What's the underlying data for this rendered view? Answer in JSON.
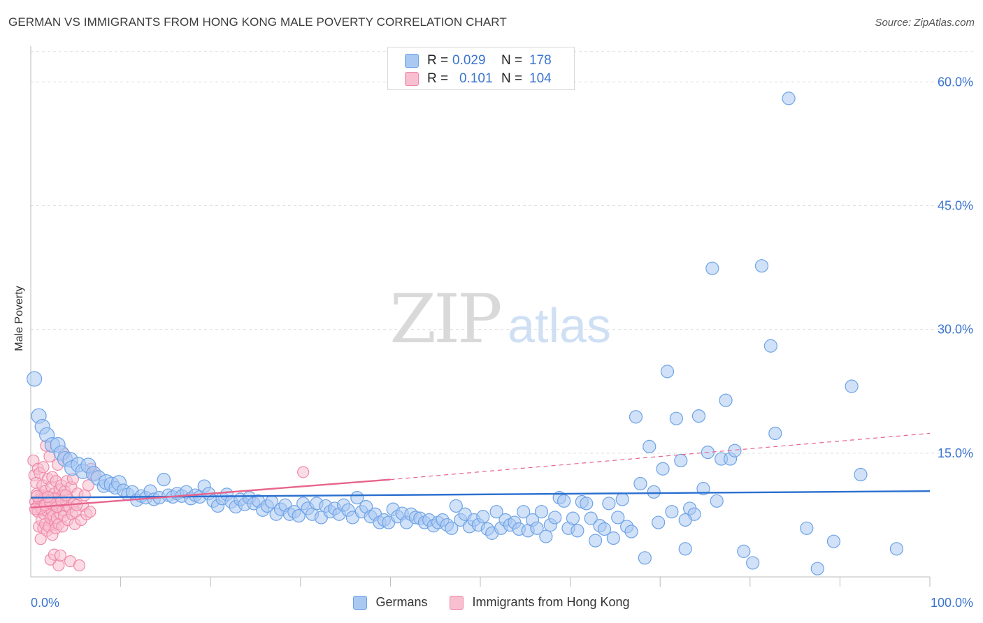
{
  "title": "GERMAN VS IMMIGRANTS FROM HONG KONG MALE POVERTY CORRELATION CHART",
  "source": "Source: ZipAtlas.com",
  "watermark": {
    "zip": "ZIP",
    "atlas": "atlas"
  },
  "colors": {
    "germans": "#6ea3e6",
    "germans_fill": "#a9c8f2",
    "germans_line": "#2a6fcf",
    "hongkong": "#f08aaa",
    "hongkong_fill": "#f7bfd0",
    "hongkong_line": "#e8648c",
    "axis_label": "#3a74d0",
    "grid": "#dddddd"
  },
  "legend_top": {
    "rows": [
      {
        "r_label": "R =",
        "r_value": "0.029",
        "n_label": "N =",
        "n_value": "178"
      },
      {
        "r_label": "R =",
        "r_value": "0.101",
        "n_label": "N =",
        "n_value": "104"
      }
    ]
  },
  "legend_bottom": {
    "germans": "Germans",
    "hongkong": "Immigrants from Hong Kong"
  },
  "chart_data": {
    "type": "scatter",
    "title": "GERMAN VS IMMIGRANTS FROM HONG KONG MALE POVERTY CORRELATION CHART",
    "xlabel": "",
    "ylabel": "Male Poverty",
    "xlim": [
      0,
      100
    ],
    "ylim": [
      0,
      64
    ],
    "x_tick_labels": [
      "0.0%",
      "100.0%"
    ],
    "y_ticks": [
      15,
      30,
      45,
      60
    ],
    "y_tick_labels": [
      "15.0%",
      "30.0%",
      "45.0%",
      "60.0%"
    ],
    "grid": true,
    "legend_placement": "bottom",
    "series": [
      {
        "name": "Germans",
        "r": 0.029,
        "n": 178,
        "trend": {
          "x": [
            0,
            100
          ],
          "y": [
            9.6,
            10.4
          ],
          "dashed_to": null
        },
        "points": [
          [
            0.4,
            24
          ],
          [
            0.9,
            19.5
          ],
          [
            1.3,
            18.2
          ],
          [
            1.8,
            17.2
          ],
          [
            2.4,
            16
          ],
          [
            3,
            16
          ],
          [
            3.4,
            15
          ],
          [
            3.8,
            14.3
          ],
          [
            4.4,
            14.2
          ],
          [
            4.6,
            13.2
          ],
          [
            5.3,
            13.6
          ],
          [
            5.8,
            12.8
          ],
          [
            6.4,
            13.5
          ],
          [
            7,
            12.5
          ],
          [
            7.5,
            12
          ],
          [
            8.1,
            11
          ],
          [
            8.4,
            11.5
          ],
          [
            9,
            11.2
          ],
          [
            9.4,
            10.8
          ],
          [
            9.8,
            11.4
          ],
          [
            10.3,
            10.5
          ],
          [
            10.8,
            10
          ],
          [
            11.3,
            10.3
          ],
          [
            11.8,
            9.3
          ],
          [
            12.3,
            9.8
          ],
          [
            12.8,
            9.6
          ],
          [
            13.3,
            10.4
          ],
          [
            13.7,
            9.4
          ],
          [
            14.3,
            9.6
          ],
          [
            14.8,
            11.8
          ],
          [
            15.3,
            9.9
          ],
          [
            15.8,
            9.7
          ],
          [
            16.3,
            10.1
          ],
          [
            16.8,
            9.8
          ],
          [
            17.3,
            10.3
          ],
          [
            17.8,
            9.5
          ],
          [
            18.3,
            9.9
          ],
          [
            18.8,
            9.7
          ],
          [
            19.3,
            11
          ],
          [
            19.8,
            10.1
          ],
          [
            20.3,
            9.2
          ],
          [
            20.8,
            8.6
          ],
          [
            21.3,
            9.5
          ],
          [
            21.8,
            10
          ],
          [
            22.3,
            9.1
          ],
          [
            22.8,
            8.5
          ],
          [
            23.3,
            9.4
          ],
          [
            23.8,
            8.8
          ],
          [
            24.3,
            9.6
          ],
          [
            24.8,
            8.9
          ],
          [
            25.3,
            9.2
          ],
          [
            25.8,
            8.1
          ],
          [
            26.3,
            8.6
          ],
          [
            26.8,
            9.1
          ],
          [
            27.3,
            7.6
          ],
          [
            27.8,
            8.2
          ],
          [
            28.3,
            8.7
          ],
          [
            28.8,
            7.6
          ],
          [
            29.3,
            7.9
          ],
          [
            29.8,
            7.4
          ],
          [
            30.3,
            8.9
          ],
          [
            30.8,
            8.3
          ],
          [
            31.3,
            7.6
          ],
          [
            31.8,
            8.9
          ],
          [
            32.3,
            7.2
          ],
          [
            32.8,
            8.6
          ],
          [
            33.3,
            7.9
          ],
          [
            33.8,
            8.3
          ],
          [
            34.3,
            7.6
          ],
          [
            34.8,
            8.7
          ],
          [
            35.3,
            8.1
          ],
          [
            35.8,
            7.2
          ],
          [
            36.3,
            9.6
          ],
          [
            36.8,
            7.9
          ],
          [
            37.3,
            8.5
          ],
          [
            37.8,
            7.3
          ],
          [
            38.3,
            7.6
          ],
          [
            38.8,
            6.6
          ],
          [
            39.3,
            6.9
          ],
          [
            39.8,
            6.6
          ],
          [
            40.3,
            8.2
          ],
          [
            40.8,
            7.3
          ],
          [
            41.3,
            7.7
          ],
          [
            41.8,
            6.6
          ],
          [
            42.3,
            7.6
          ],
          [
            42.8,
            7.2
          ],
          [
            43.3,
            7.1
          ],
          [
            43.8,
            6.6
          ],
          [
            44.3,
            6.9
          ],
          [
            44.8,
            6.2
          ],
          [
            45.3,
            6.6
          ],
          [
            45.8,
            6.9
          ],
          [
            46.3,
            6.3
          ],
          [
            46.8,
            5.9
          ],
          [
            47.3,
            8.6
          ],
          [
            47.8,
            6.9
          ],
          [
            48.3,
            7.6
          ],
          [
            48.8,
            6.1
          ],
          [
            49.3,
            6.9
          ],
          [
            49.8,
            6.3
          ],
          [
            50.3,
            7.3
          ],
          [
            50.8,
            5.8
          ],
          [
            51.3,
            5.3
          ],
          [
            51.8,
            7.9
          ],
          [
            52.3,
            5.9
          ],
          [
            52.8,
            6.9
          ],
          [
            53.3,
            6.3
          ],
          [
            53.8,
            6.6
          ],
          [
            54.3,
            5.8
          ],
          [
            54.8,
            7.9
          ],
          [
            55.3,
            5.6
          ],
          [
            55.8,
            6.9
          ],
          [
            56.3,
            5.9
          ],
          [
            56.8,
            7.9
          ],
          [
            57.3,
            4.9
          ],
          [
            57.8,
            6.3
          ],
          [
            58.3,
            7.2
          ],
          [
            58.8,
            9.6
          ],
          [
            59.3,
            9.2
          ],
          [
            59.8,
            5.9
          ],
          [
            60.3,
            7.1
          ],
          [
            60.8,
            5.6
          ],
          [
            61.3,
            9.1
          ],
          [
            61.8,
            8.9
          ],
          [
            62.3,
            7.1
          ],
          [
            62.8,
            4.4
          ],
          [
            63.3,
            6.2
          ],
          [
            63.8,
            5.8
          ],
          [
            64.3,
            8.9
          ],
          [
            64.8,
            4.7
          ],
          [
            65.3,
            7.2
          ],
          [
            65.8,
            9.4
          ],
          [
            66.3,
            6.1
          ],
          [
            66.8,
            5.5
          ],
          [
            67.3,
            19.4
          ],
          [
            67.8,
            11.3
          ],
          [
            68.3,
            2.3
          ],
          [
            68.8,
            15.8
          ],
          [
            69.3,
            10.3
          ],
          [
            69.8,
            6.6
          ],
          [
            70.3,
            13.1
          ],
          [
            70.8,
            24.9
          ],
          [
            71.3,
            7.9
          ],
          [
            71.8,
            19.2
          ],
          [
            72.3,
            14.1
          ],
          [
            72.8,
            3.4
          ],
          [
            73.3,
            8.3
          ],
          [
            73.8,
            7.6
          ],
          [
            74.3,
            19.5
          ],
          [
            74.8,
            10.7
          ],
          [
            75.3,
            15.1
          ],
          [
            75.8,
            37.4
          ],
          [
            76.3,
            9.2
          ],
          [
            76.8,
            14.3
          ],
          [
            77.3,
            21.4
          ],
          [
            77.8,
            14.3
          ],
          [
            78.3,
            15.3
          ],
          [
            79.3,
            3.1
          ],
          [
            80.3,
            1.7
          ],
          [
            81.3,
            37.7
          ],
          [
            82.3,
            28
          ],
          [
            82.8,
            17.4
          ],
          [
            84.3,
            58
          ],
          [
            86.3,
            5.9
          ],
          [
            87.5,
            1
          ],
          [
            89.3,
            4.3
          ],
          [
            91.3,
            23.1
          ],
          [
            92.3,
            12.4
          ],
          [
            96.3,
            3.4
          ],
          [
            72.8,
            6.9
          ]
        ]
      },
      {
        "name": "Immigrants from Hong Kong",
        "r": 0.101,
        "n": 104,
        "trend": {
          "x": [
            0,
            40
          ],
          "y": [
            8.4,
            11.8
          ],
          "dashed_to": [
            100,
            17.4
          ]
        },
        "points": [
          [
            0.3,
            14.1
          ],
          [
            0.4,
            12.3
          ],
          [
            0.5,
            9.1
          ],
          [
            0.6,
            8.4
          ],
          [
            0.6,
            11.4
          ],
          [
            0.7,
            10.1
          ],
          [
            0.8,
            7.9
          ],
          [
            0.8,
            13.1
          ],
          [
            0.9,
            6.1
          ],
          [
            1,
            9.4
          ],
          [
            1,
            12.6
          ],
          [
            1.1,
            8.7
          ],
          [
            1.1,
            4.6
          ],
          [
            1.2,
            9.9
          ],
          [
            1.2,
            6.9
          ],
          [
            1.3,
            11.1
          ],
          [
            1.3,
            8.1
          ],
          [
            1.4,
            13.3
          ],
          [
            1.4,
            5.9
          ],
          [
            1.5,
            9.6
          ],
          [
            1.5,
            7.6
          ],
          [
            1.6,
            10.4
          ],
          [
            1.6,
            6.4
          ],
          [
            1.7,
            8.4
          ],
          [
            1.7,
            15.9
          ],
          [
            1.8,
            9.1
          ],
          [
            1.8,
            5.6
          ],
          [
            1.9,
            7.9
          ],
          [
            1.9,
            11.9
          ],
          [
            2,
            8.9
          ],
          [
            2,
            6.1
          ],
          [
            2.1,
            14.6
          ],
          [
            2.1,
            9.6
          ],
          [
            2.2,
            7.1
          ],
          [
            2.2,
            2.1
          ],
          [
            2.3,
            10.9
          ],
          [
            2.3,
            8.1
          ],
          [
            2.4,
            5.1
          ],
          [
            2.4,
            12.1
          ],
          [
            2.5,
            9.4
          ],
          [
            2.5,
            7.4
          ],
          [
            2.6,
            2.7
          ],
          [
            2.6,
            10.1
          ],
          [
            2.7,
            6.6
          ],
          [
            2.7,
            8.6
          ],
          [
            2.8,
            11.6
          ],
          [
            2.8,
            5.9
          ],
          [
            2.9,
            9.1
          ],
          [
            2.9,
            7.1
          ],
          [
            3,
            13.6
          ],
          [
            3,
            8.4
          ],
          [
            3.1,
            6.4
          ],
          [
            3.1,
            1.4
          ],
          [
            3.2,
            10.6
          ],
          [
            3.2,
            8.9
          ],
          [
            3.3,
            7.6
          ],
          [
            3.3,
            2.6
          ],
          [
            3.4,
            11.1
          ],
          [
            3.5,
            9.9
          ],
          [
            3.5,
            6.1
          ],
          [
            3.6,
            8.1
          ],
          [
            3.7,
            14.9
          ],
          [
            3.7,
            7.4
          ],
          [
            3.8,
            10.4
          ],
          [
            3.9,
            8.6
          ],
          [
            4,
            11.6
          ],
          [
            4.1,
            6.9
          ],
          [
            4.2,
            9.4
          ],
          [
            4.3,
            8.4
          ],
          [
            4.4,
            1.9
          ],
          [
            4.5,
            10.9
          ],
          [
            4.6,
            7.6
          ],
          [
            4.7,
            11.9
          ],
          [
            4.8,
            8.9
          ],
          [
            4.9,
            6.4
          ],
          [
            5,
            7.9
          ],
          [
            5.2,
            10.1
          ],
          [
            5.4,
            1.4
          ],
          [
            5.6,
            6.9
          ],
          [
            5.8,
            8.6
          ],
          [
            6,
            9.9
          ],
          [
            6.2,
            7.6
          ],
          [
            6.4,
            11.1
          ],
          [
            6.7,
            13.1
          ],
          [
            7,
            12.4
          ],
          [
            0.9,
            9.1
          ],
          [
            1.2,
            8.6
          ],
          [
            1.5,
            9.4
          ],
          [
            1.8,
            8.9
          ],
          [
            2.1,
            9.2
          ],
          [
            2.4,
            8.8
          ],
          [
            2.7,
            9.5
          ],
          [
            0.7,
            9.8
          ],
          [
            1.1,
            8.3
          ],
          [
            1.6,
            8.7
          ],
          [
            2.2,
            9.0
          ],
          [
            2.9,
            8.5
          ],
          [
            3.4,
            9.2
          ],
          [
            0.5,
            8.2
          ],
          [
            1.9,
            9.7
          ],
          [
            30.3,
            12.7
          ],
          [
            3.9,
            9.9
          ],
          [
            5.1,
            8.7
          ],
          [
            6.6,
            7.9
          ]
        ]
      }
    ]
  }
}
